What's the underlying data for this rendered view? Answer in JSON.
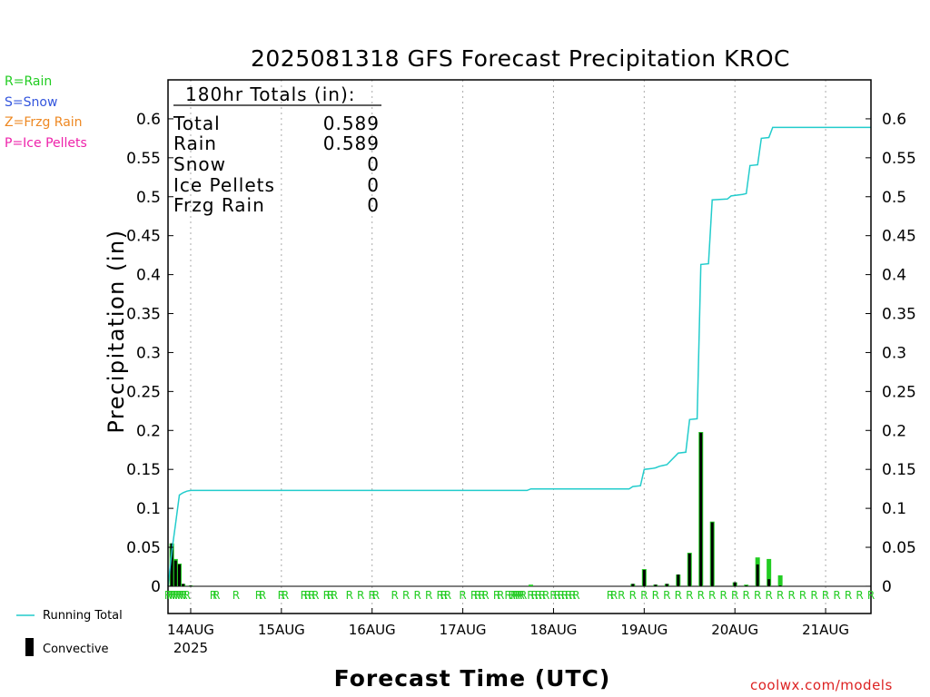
{
  "title": "2025081318 GFS Forecast Precipitation KROC",
  "type_legend": [
    {
      "label": "R=Rain",
      "color": "#22cc22"
    },
    {
      "label": "S=Snow",
      "color": "#3355dd"
    },
    {
      "label": "Z=Frzg Rain",
      "color": "#ee8822"
    },
    {
      "label": "P=Ice Pellets",
      "color": "#ee22aa"
    }
  ],
  "totals": {
    "header": "180hr Totals (in):",
    "rows": [
      {
        "label": "Total",
        "value": "0.589"
      },
      {
        "label": "Rain",
        "value": "0.589"
      },
      {
        "label": "Snow",
        "value": "0"
      },
      {
        "label": "Ice Pellets",
        "value": "0"
      },
      {
        "label": "Frzg Rain",
        "value": "0"
      }
    ]
  },
  "series_legend": {
    "running_total": "Running Total",
    "convective": "Convective"
  },
  "xlabel": "Forecast Time (UTC)",
  "ylabel": "Precipitation (in)",
  "credit": "coolwx.com/models",
  "colors": {
    "running_total": "#22cccc",
    "rain_bar": "#22cc22",
    "convective_bar": "#000000",
    "rain_marker": "#22cc22"
  },
  "chart_data": {
    "type": "bar",
    "title": "2025081318 GFS Forecast Precipitation KROC",
    "xlabel": "Forecast Time (UTC)",
    "ylabel": "Precipitation (in)",
    "x_unit": "hours after 2025-08-13 18Z",
    "xlim": [
      0,
      186
    ],
    "ylim": [
      -0.035,
      0.65
    ],
    "y_ticks": [
      0,
      0.05,
      0.1,
      0.15,
      0.2,
      0.25,
      0.3,
      0.35,
      0.4,
      0.45,
      0.5,
      0.55,
      0.6
    ],
    "x_ticks": [
      {
        "x": 6,
        "label": "14AUG",
        "sublabel": "2025"
      },
      {
        "x": 30,
        "label": "15AUG"
      },
      {
        "x": 54,
        "label": "16AUG"
      },
      {
        "x": 78,
        "label": "17AUG"
      },
      {
        "x": 102,
        "label": "18AUG"
      },
      {
        "x": 126,
        "label": "19AUG"
      },
      {
        "x": 150,
        "label": "20AUG"
      },
      {
        "x": 174,
        "label": "21AUG"
      }
    ],
    "grid": "vertical dotted at day boundaries",
    "running_total": [
      [
        0,
        0
      ],
      [
        1,
        0.045
      ],
      [
        2,
        0.08
      ],
      [
        3,
        0.117
      ],
      [
        4,
        0.12
      ],
      [
        5,
        0.122
      ],
      [
        6,
        0.123
      ],
      [
        90,
        0.123
      ],
      [
        95,
        0.123
      ],
      [
        96,
        0.125
      ],
      [
        122,
        0.125
      ],
      [
        123,
        0.128
      ],
      [
        125,
        0.129
      ],
      [
        126,
        0.15
      ],
      [
        128,
        0.151
      ],
      [
        129,
        0.152
      ],
      [
        130,
        0.154
      ],
      [
        131,
        0.155
      ],
      [
        132,
        0.156
      ],
      [
        135,
        0.171
      ],
      [
        137,
        0.172
      ],
      [
        138,
        0.214
      ],
      [
        140,
        0.215
      ],
      [
        141,
        0.413
      ],
      [
        143,
        0.414
      ],
      [
        144,
        0.496
      ],
      [
        148,
        0.497
      ],
      [
        149,
        0.501
      ],
      [
        152,
        0.503
      ],
      [
        153,
        0.504
      ],
      [
        154,
        0.54
      ],
      [
        156,
        0.541
      ],
      [
        157,
        0.575
      ],
      [
        159,
        0.576
      ],
      [
        160,
        0.589
      ],
      [
        186,
        0.589
      ]
    ],
    "precip_bars": [
      {
        "x": 1,
        "total": 0.055,
        "convective": 0.055
      },
      {
        "x": 2,
        "total": 0.035,
        "convective": 0.033
      },
      {
        "x": 3,
        "total": 0.029,
        "convective": 0.028
      },
      {
        "x": 4,
        "total": 0.003,
        "convective": 0.003
      },
      {
        "x": 6,
        "total": 0.001,
        "convective": 0.001
      },
      {
        "x": 96,
        "total": 0.002,
        "convective": 0.0
      },
      {
        "x": 123,
        "total": 0.003,
        "convective": 0.003
      },
      {
        "x": 126,
        "total": 0.022,
        "convective": 0.021
      },
      {
        "x": 129,
        "total": 0.002,
        "convective": 0.002
      },
      {
        "x": 132,
        "total": 0.003,
        "convective": 0.003
      },
      {
        "x": 135,
        "total": 0.015,
        "convective": 0.015
      },
      {
        "x": 138,
        "total": 0.043,
        "convective": 0.042
      },
      {
        "x": 141,
        "total": 0.198,
        "convective": 0.197
      },
      {
        "x": 144,
        "total": 0.083,
        "convective": 0.082
      },
      {
        "x": 150,
        "total": 0.005,
        "convective": 0.005
      },
      {
        "x": 153,
        "total": 0.002,
        "convective": 0.001
      },
      {
        "x": 156,
        "total": 0.037,
        "convective": 0.028
      },
      {
        "x": 159,
        "total": 0.035,
        "convective": 0.009
      },
      {
        "x": 162,
        "total": 0.014,
        "convective": 0.001
      }
    ],
    "precip_type_markers": {
      "symbol": "R",
      "x": [
        0,
        0.7,
        1.4,
        2.1,
        2.8,
        3.5,
        4.2,
        5,
        12,
        12.8,
        18,
        24,
        25,
        30,
        31,
        36,
        37,
        38,
        39,
        42,
        43,
        44,
        48,
        51,
        54,
        55,
        60,
        63,
        66,
        69,
        72,
        73,
        74,
        78,
        81,
        82,
        83,
        84,
        87,
        88,
        90,
        91,
        91.6,
        92.2,
        92.8,
        93.4,
        94,
        96,
        97,
        98,
        99,
        100,
        102,
        103,
        104,
        105,
        106,
        107,
        108,
        117,
        118,
        120,
        123,
        126,
        129,
        132,
        135,
        138,
        141,
        144,
        147,
        150,
        153,
        156,
        159,
        162,
        165,
        168,
        171,
        174,
        177,
        180,
        183,
        186
      ]
    }
  }
}
